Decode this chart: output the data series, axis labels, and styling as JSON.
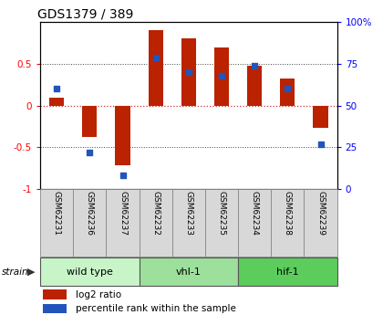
{
  "title": "GDS1379 / 389",
  "samples": [
    "GSM62231",
    "GSM62236",
    "GSM62237",
    "GSM62232",
    "GSM62233",
    "GSM62235",
    "GSM62234",
    "GSM62238",
    "GSM62239"
  ],
  "log2_ratio": [
    0.09,
    -0.38,
    -0.72,
    0.9,
    0.8,
    0.7,
    0.48,
    0.32,
    -0.27
  ],
  "percentile_rank": [
    60,
    22,
    8,
    79,
    70,
    68,
    74,
    60,
    27
  ],
  "groups": [
    {
      "label": "wild type",
      "start": 0,
      "end": 3,
      "color": "#c8f5c8"
    },
    {
      "label": "vhl-1",
      "start": 3,
      "end": 6,
      "color": "#9ce09c"
    },
    {
      "label": "hif-1",
      "start": 6,
      "end": 9,
      "color": "#5ccd5c"
    }
  ],
  "ylim_left": [
    -1,
    1
  ],
  "ylim_right": [
    0,
    100
  ],
  "yticks_left": [
    -1,
    -0.5,
    0,
    0.5
  ],
  "yticks_right": [
    0,
    25,
    50,
    75,
    100
  ],
  "bar_color": "#bb2200",
  "dot_color": "#2255bb",
  "zero_line_color": "#cc3333",
  "dotted_line_color": "#444444",
  "label_bg": "#d8d8d8",
  "bg_color": "#ffffff"
}
